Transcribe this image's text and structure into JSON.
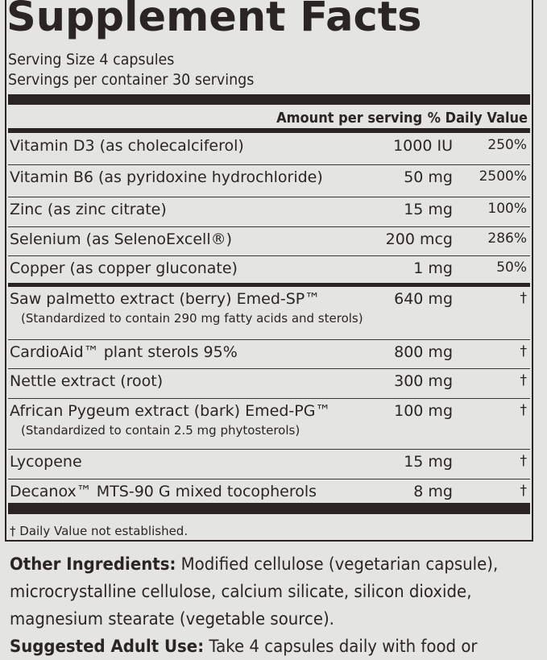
{
  "title": "Supplement Facts",
  "serving_size": "Serving Size   4 capsules",
  "servings_per_container": "Servings per container   30 servings",
  "header": {
    "amount": "Amount per serving",
    "dv": "% Daily Value"
  },
  "rows": [
    {
      "name": "Vitamin D3 (as cholecalciferol)",
      "amount": "1000 IU",
      "dv": "250%"
    },
    {
      "name": "Vitamin B6 (as pyridoxine hydrochloride)",
      "amount": "50 mg",
      "dv": "2500%"
    },
    {
      "name": "Zinc (as zinc citrate)",
      "amount": "15 mg",
      "dv": "100%"
    },
    {
      "name": "Selenium (as SelenoExcell®)",
      "amount": "200 mcg",
      "dv": "286%"
    },
    {
      "name": "Copper (as copper gluconate)",
      "amount": "1 mg",
      "dv": "50%"
    },
    {
      "name": "Saw palmetto extract (berry) Emed-SP™",
      "sub": "(Standardized to contain 290 mg fatty acids and sterols)",
      "amount": "640 mg",
      "dv": "†"
    },
    {
      "name": "CardioAid™ plant sterols 95%",
      "amount": "800 mg",
      "dv": "†"
    },
    {
      "name": "Nettle extract (root)",
      "amount": "300 mg",
      "dv": "†"
    },
    {
      "name": "African Pygeum extract (bark) Emed-PG™",
      "sub": "(Standardized to contain 2.5 mg phytosterols)",
      "amount": "100 mg",
      "dv": "†"
    },
    {
      "name": "Lycopene",
      "amount": "15 mg",
      "dv": "†"
    },
    {
      "name": "Decanox™ MTS-90 G mixed tocopherols",
      "amount": "8 mg",
      "dv": "†"
    }
  ],
  "footnote": "† Daily Value not established.",
  "other_ingredients": {
    "label": "Other Ingredients:",
    "text": "Modified cellulose (vegetarian capsule), microcrystalline cellulose, calcium silicate, silicon dioxide, magnesium stearate (vegetable source)."
  },
  "suggested_use": {
    "label": "Suggested Adult Use:",
    "text": "Take 4 capsules daily with food or"
  }
}
